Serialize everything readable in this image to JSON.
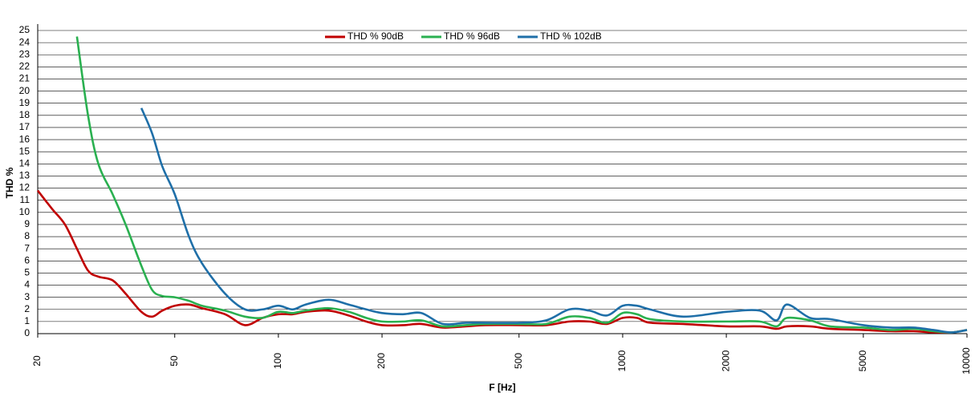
{
  "chart_data": {
    "type": "line",
    "xscale": "log",
    "grid": true,
    "legend": "top",
    "x_label": "F [Hz]",
    "y_label": "THD %",
    "x": [
      20,
      22,
      24,
      26,
      28,
      30,
      33,
      36,
      40,
      43,
      46,
      50,
      55,
      60,
      70,
      80,
      90,
      100,
      110,
      120,
      140,
      160,
      180,
      200,
      230,
      260,
      300,
      350,
      400,
      500,
      600,
      700,
      800,
      900,
      1000,
      1100,
      1200,
      1500,
      2000,
      2500,
      2800,
      3000,
      3500,
      4000,
      5000,
      6000,
      7000,
      8000,
      9000,
      10000
    ],
    "series": [
      {
        "name": "THD % 90dB",
        "color": "#c00000",
        "values": [
          11.8,
          10.3,
          9.0,
          7.0,
          5.2,
          4.7,
          4.4,
          3.3,
          1.8,
          1.4,
          1.9,
          2.3,
          2.4,
          2.1,
          1.6,
          0.7,
          1.3,
          1.6,
          1.6,
          1.8,
          1.9,
          1.5,
          1.0,
          0.7,
          0.7,
          0.8,
          0.5,
          0.6,
          0.7,
          0.7,
          0.7,
          1.0,
          1.0,
          0.8,
          1.3,
          1.3,
          0.9,
          0.8,
          0.6,
          0.6,
          0.4,
          0.6,
          0.6,
          0.4,
          0.3,
          0.2,
          0.2,
          0.1,
          0.1,
          0.3
        ]
      },
      {
        "name": "THD % 96dB",
        "color": "#2ab050",
        "values": [
          null,
          null,
          null,
          24.5,
          18,
          14,
          11.5,
          9,
          5.6,
          3.6,
          3.1,
          3.0,
          2.7,
          2.3,
          1.9,
          1.4,
          1.3,
          1.8,
          1.7,
          1.9,
          2.1,
          1.8,
          1.3,
          1.0,
          1.0,
          1.1,
          0.6,
          0.7,
          0.8,
          0.8,
          0.8,
          1.4,
          1.3,
          0.9,
          1.7,
          1.6,
          1.2,
          1.0,
          1.0,
          1.0,
          0.6,
          1.3,
          1.1,
          0.6,
          0.5,
          0.3,
          0.4,
          0.2,
          0.1,
          0.3
        ]
      },
      {
        "name": "THD % 102dB",
        "color": "#1f6fa8",
        "values": [
          null,
          null,
          null,
          null,
          null,
          null,
          null,
          null,
          18.6,
          16.5,
          13.8,
          11.5,
          8.0,
          5.8,
          3.3,
          2.0,
          2.0,
          2.3,
          2.0,
          2.4,
          2.8,
          2.4,
          2.0,
          1.7,
          1.6,
          1.7,
          0.8,
          0.9,
          0.9,
          0.9,
          1.1,
          2.0,
          1.9,
          1.5,
          2.3,
          2.3,
          2.0,
          1.4,
          1.8,
          1.9,
          1.1,
          2.4,
          1.3,
          1.2,
          0.7,
          0.5,
          0.5,
          0.3,
          0.1,
          0.3
        ]
      }
    ],
    "xlim": [
      20,
      10000
    ],
    "xticks": [
      20,
      50,
      100,
      200,
      500,
      1000,
      2000,
      5000,
      10000
    ],
    "ylim": [
      0,
      25
    ],
    "yticks": [
      0,
      1,
      2,
      3,
      4,
      5,
      6,
      7,
      8,
      9,
      10,
      11,
      12,
      13,
      14,
      15,
      16,
      17,
      18,
      19,
      20,
      21,
      22,
      23,
      24,
      25
    ]
  }
}
